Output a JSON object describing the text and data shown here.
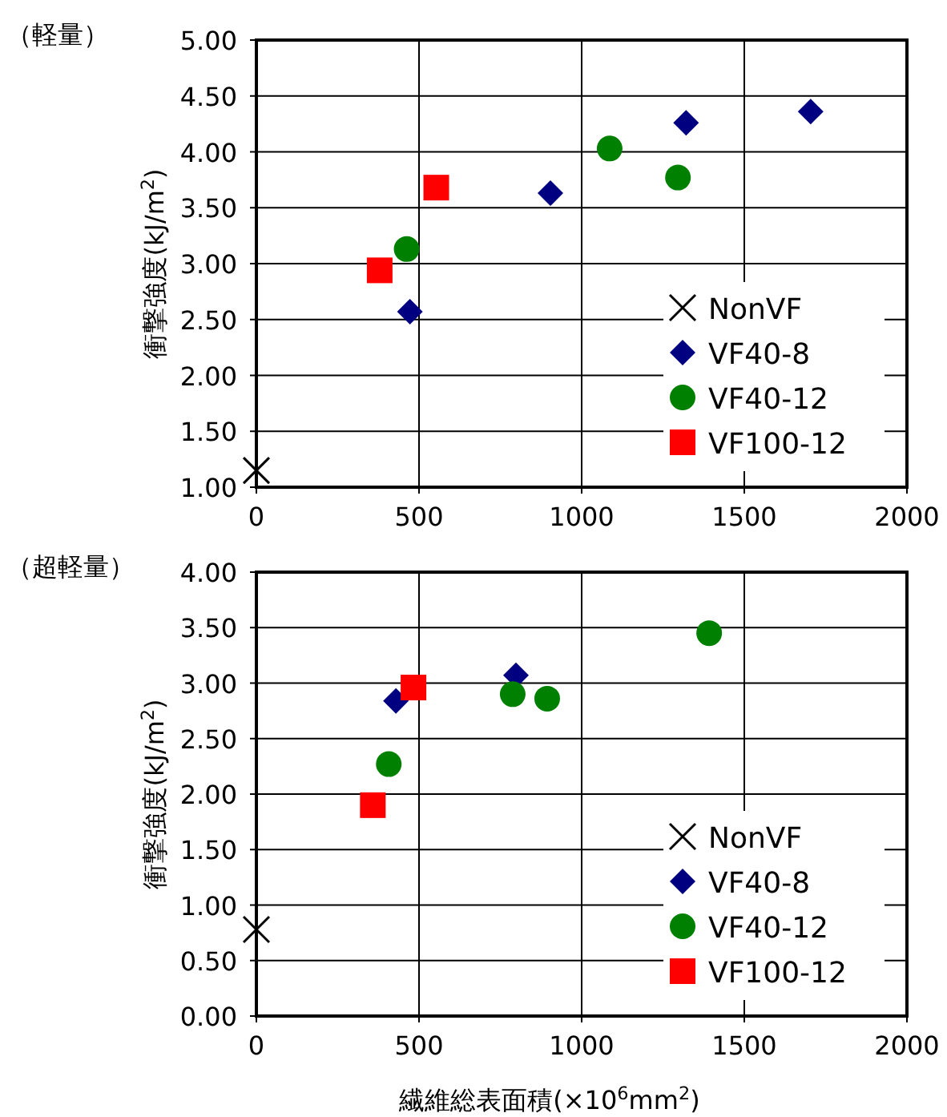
{
  "chart_data": [
    {
      "type": "scatter",
      "title": "（軽量）",
      "ylabel": "衝撃強度(kJ/m$^{2}$)",
      "xlim": [
        0,
        2000
      ],
      "xticks": [
        0,
        500,
        1000,
        1500,
        2000
      ],
      "ylim": [
        1,
        5
      ],
      "yticks": [
        {
          "value": 1,
          "label": "1.00"
        },
        {
          "value": 1.5,
          "label": "1.50"
        },
        {
          "value": 2,
          "label": "2.00"
        },
        {
          "value": 2.5,
          "label": "2.50"
        },
        {
          "value": 3,
          "label": "3.00"
        },
        {
          "value": 3.5,
          "label": "3.50"
        },
        {
          "value": 4,
          "label": "4.00"
        },
        {
          "value": 4.5,
          "label": "4.50"
        },
        {
          "value": 5,
          "label": "5.00"
        }
      ],
      "grid": true,
      "legend": "bottom right",
      "series": [
        {
          "name": "NonVF",
          "color": "#000000",
          "marker": "cross",
          "x": [
            0
          ],
          "values": [
            1.15
          ]
        },
        {
          "name": "VF40-8",
          "color": "#000080",
          "marker": "diamond",
          "x": [
            472,
            904,
            1321,
            1704
          ],
          "values": [
            2.57,
            3.63,
            4.26,
            4.36
          ]
        },
        {
          "name": "VF40-12",
          "color": "#008000",
          "marker": "circle",
          "x": [
            462,
            1086,
            1296
          ],
          "values": [
            3.13,
            4.03,
            3.77
          ]
        },
        {
          "name": "VF100-12",
          "color": "#ff0000",
          "marker": "square",
          "x": [
            379,
            553
          ],
          "values": [
            2.94,
            3.68
          ]
        }
      ]
    },
    {
      "type": "scatter",
      "title": "（超軽量）",
      "xlabel": "繊維総表面積(×10$^{6}$mm$^{2}$)",
      "ylabel": "衝撃強度(kJ/m$^{2}$)",
      "xlim": [
        0,
        2000
      ],
      "xticks": [
        0,
        500,
        1000,
        1500,
        2000
      ],
      "ylim": [
        0,
        4
      ],
      "yticks": [
        {
          "value": 0,
          "label": "0.00"
        },
        {
          "value": 0.5,
          "label": "0.50"
        },
        {
          "value": 1,
          "label": "1.00"
        },
        {
          "value": 1.5,
          "label": "1.50"
        },
        {
          "value": 2,
          "label": "2.00"
        },
        {
          "value": 2.5,
          "label": "2.50"
        },
        {
          "value": 3,
          "label": "3.00"
        },
        {
          "value": 3.5,
          "label": "3.50"
        },
        {
          "value": 4,
          "label": "4.00"
        }
      ],
      "grid": true,
      "legend": "bottom right",
      "series": [
        {
          "name": "NonVF",
          "color": "#000000",
          "marker": "cross",
          "x": [
            0
          ],
          "values": [
            0.78
          ]
        },
        {
          "name": "VF40-8",
          "color": "#000080",
          "marker": "diamond",
          "x": [
            429,
            798
          ],
          "values": [
            2.84,
            3.07
          ]
        },
        {
          "name": "VF40-12",
          "color": "#008000",
          "marker": "circle",
          "x": [
            407,
            788,
            894,
            1392
          ],
          "values": [
            2.27,
            2.9,
            2.86,
            3.45
          ]
        },
        {
          "name": "VF100-12",
          "color": "#ff0000",
          "marker": "square",
          "x": [
            358,
            483
          ],
          "values": [
            1.9,
            2.96
          ]
        }
      ]
    }
  ]
}
